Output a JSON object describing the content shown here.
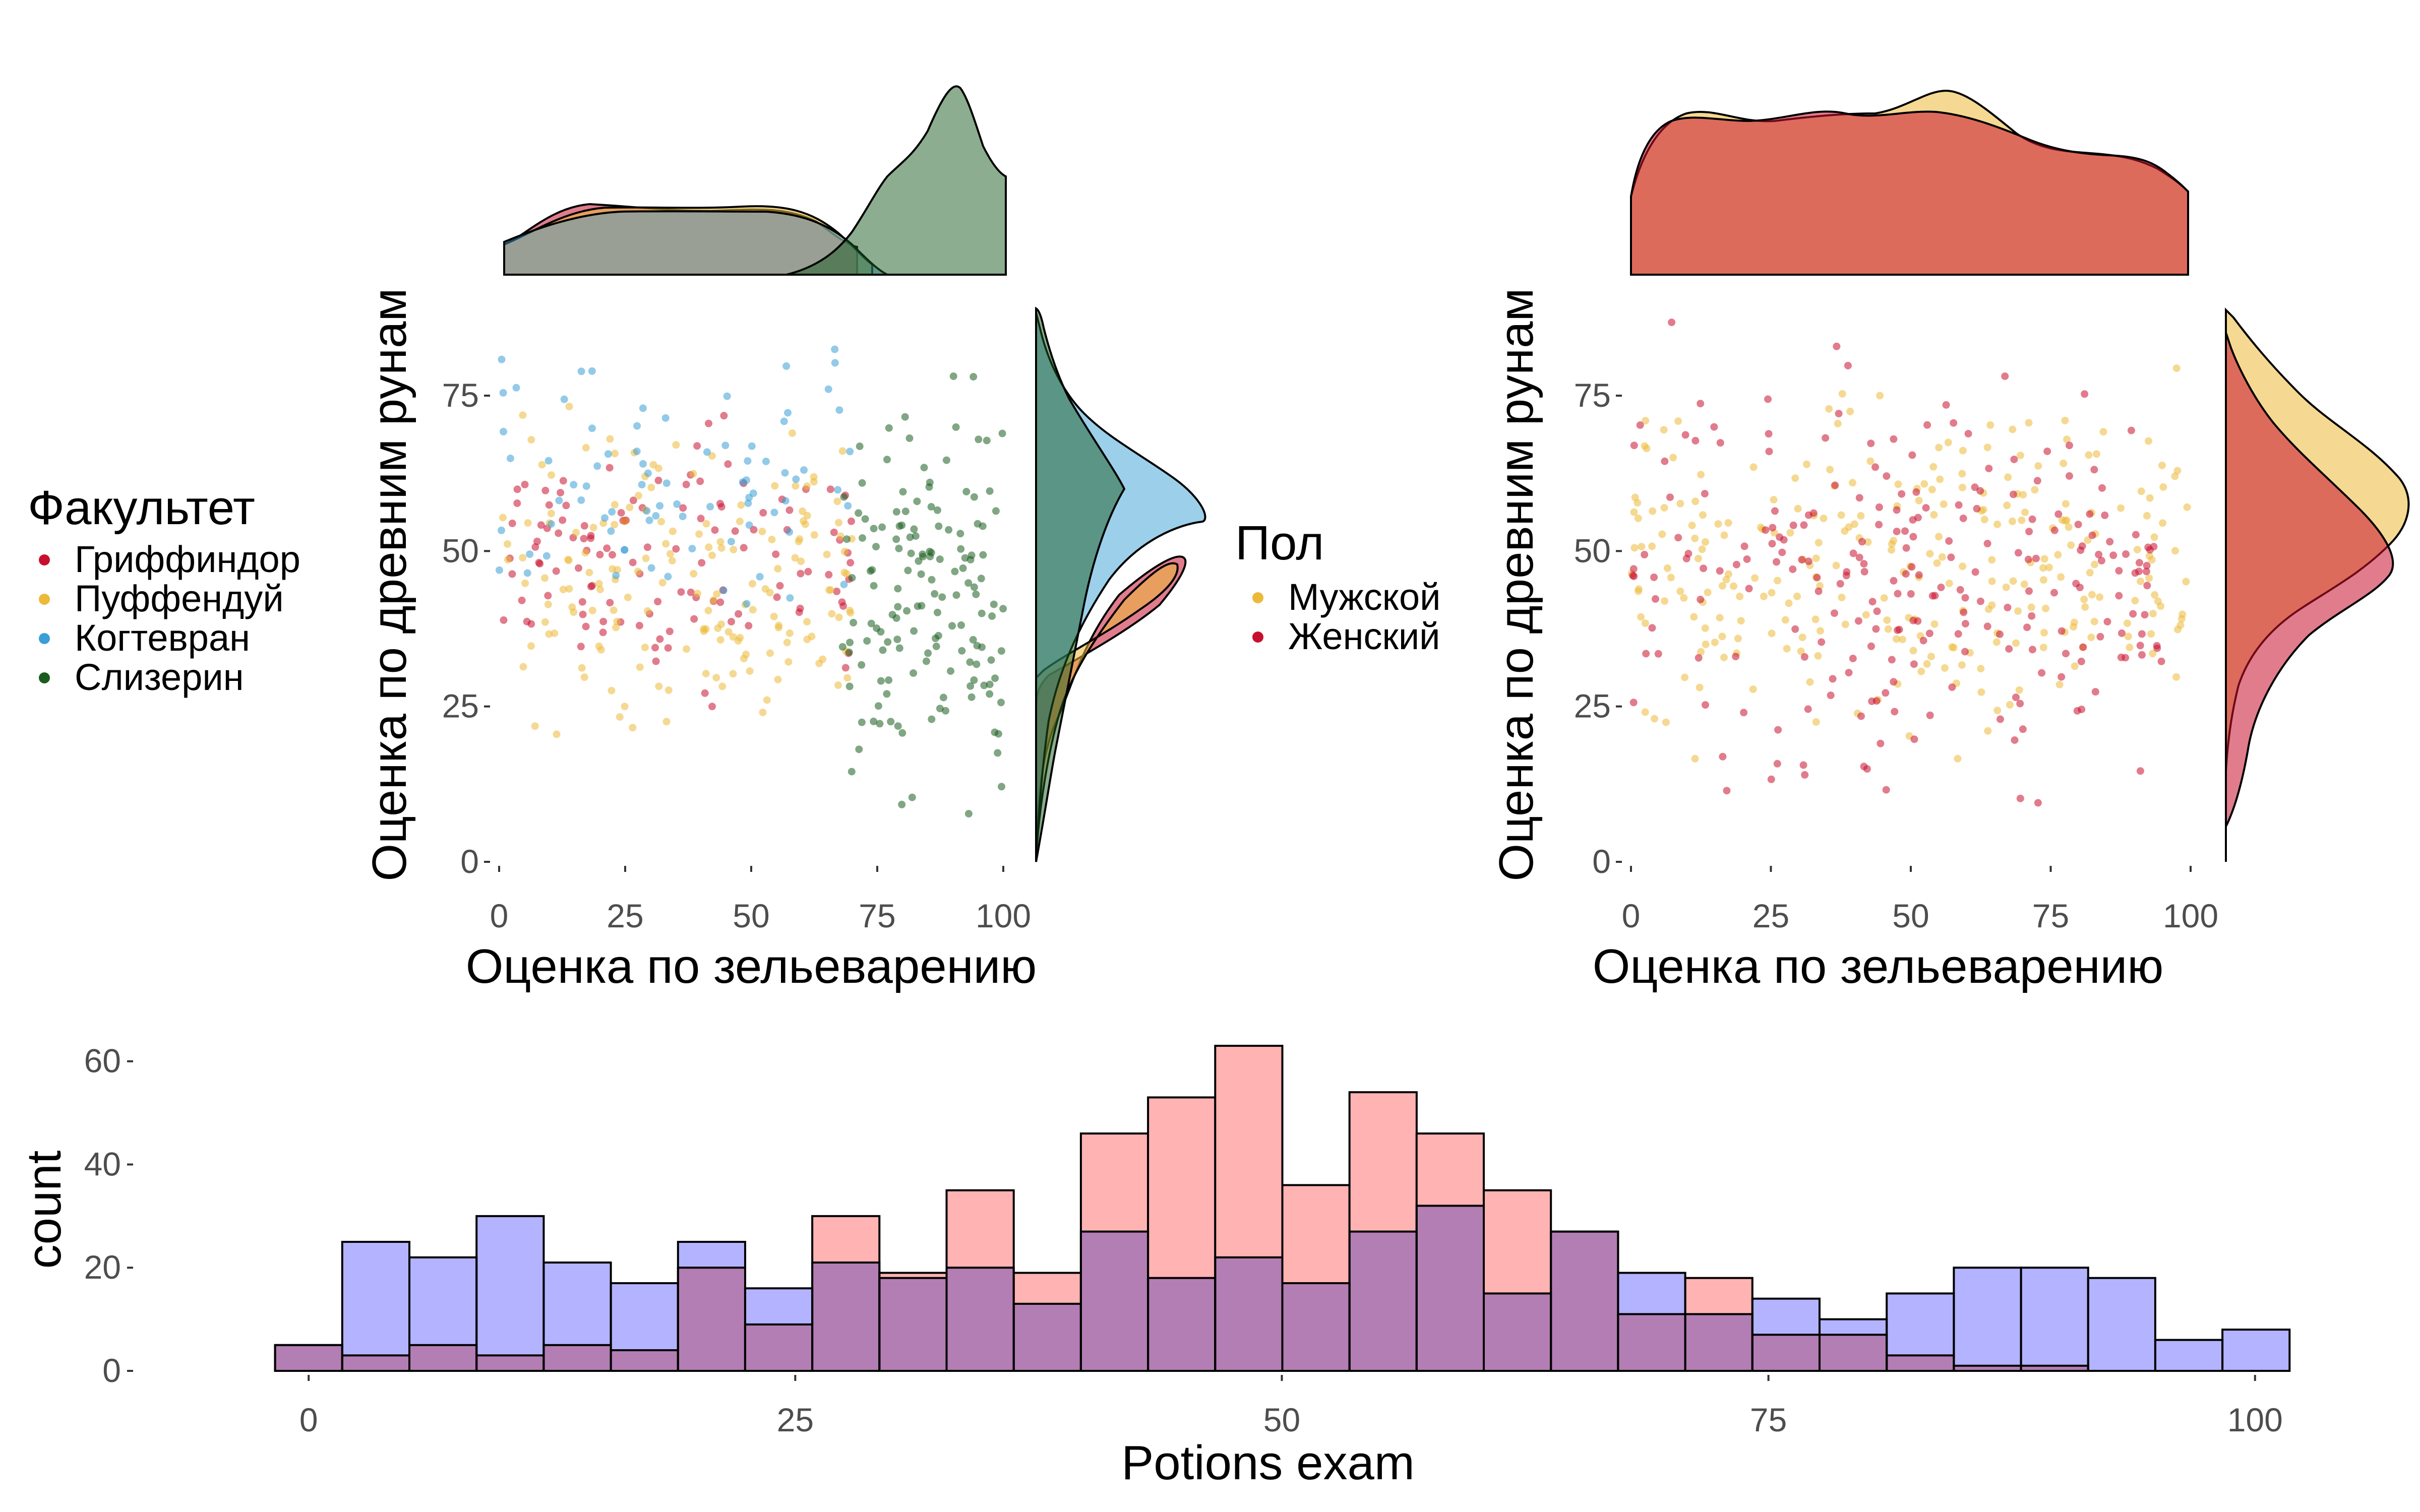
{
  "chart_data": [
    {
      "id": "scatter-by-house",
      "type": "scatter",
      "xlabel": "Оценка по зельеварению",
      "ylabel": "Оценка по древним рунам",
      "xlim": [
        0,
        100
      ],
      "ylim": [
        0,
        90
      ],
      "xticks": [
        "0",
        "25",
        "50",
        "75",
        "100"
      ],
      "yticks": [
        "0",
        "25",
        "50",
        "75"
      ],
      "legend": {
        "title": "Факультет",
        "position": "left",
        "entries": [
          {
            "label": "Гриффиндор",
            "color": "#c8102e"
          },
          {
            "label": "Пуффендуй",
            "color": "#ecb939"
          },
          {
            "label": "Когтевран",
            "color": "#3a9fd6"
          },
          {
            "label": "Слизерин",
            "color": "#1a5c1f"
          }
        ]
      },
      "series": [
        {
          "name": "Гриффиндор",
          "color": "#c8102e",
          "x_range": [
            0,
            70
          ],
          "y_range": [
            20,
            80
          ],
          "count": 120
        },
        {
          "name": "Пуффендуй",
          "color": "#ecb939",
          "x_range": [
            0,
            70
          ],
          "y_range": [
            12,
            80
          ],
          "count": 170
        },
        {
          "name": "Когтевран",
          "color": "#3a9fd6",
          "x_range": [
            0,
            70
          ],
          "y_range": [
            32,
            90
          ],
          "count": 80
        },
        {
          "name": "Слизерин",
          "color": "#1a5c1f",
          "x_range": [
            68,
            100
          ],
          "y_range": [
            0,
            88
          ],
          "count": 150
        }
      ],
      "marginal_x": {
        "type": "density",
        "note": "Слизерин peaks near x=88; other houses roughly flat across 0-65"
      },
      "marginal_y": {
        "type": "density",
        "note": "Гриффиндор/Пуффендуй peak near y=48; Когтевран near y=55; Слизерин broad"
      }
    },
    {
      "id": "scatter-by-gender",
      "type": "scatter",
      "xlabel": "Оценка по зельеварению",
      "ylabel": "Оценка по древним рунам",
      "xlim": [
        0,
        100
      ],
      "ylim": [
        0,
        90
      ],
      "xticks": [
        "0",
        "25",
        "50",
        "75",
        "100"
      ],
      "yticks": [
        "0",
        "25",
        "50",
        "75"
      ],
      "legend": {
        "title": "Пол",
        "position": "left",
        "entries": [
          {
            "label": "Мужской",
            "color": "#ecb939"
          },
          {
            "label": "Женский",
            "color": "#c8102e"
          }
        ]
      },
      "series": [
        {
          "name": "Мужской",
          "color": "#ecb939",
          "x_range": [
            0,
            100
          ],
          "y_range": [
            12,
            85
          ],
          "count": 280
        },
        {
          "name": "Женский",
          "color": "#c8102e",
          "x_range": [
            0,
            95
          ],
          "y_range": [
            0,
            90
          ],
          "count": 240
        }
      ],
      "marginal_x": {
        "type": "density",
        "fill": "#df6e4e"
      },
      "marginal_y": {
        "type": "density",
        "note": "Мужской peaks near y=55; Женский peaks near y=48"
      }
    },
    {
      "id": "histogram-potions",
      "type": "bar",
      "subtype": "histogram",
      "xlabel": "Potions exam",
      "ylabel": "count",
      "xlim": [
        -2,
        102
      ],
      "ylim": [
        0,
        63
      ],
      "xticks": [
        0,
        25,
        50,
        75,
        100
      ],
      "yticks": [
        0,
        20,
        40,
        60
      ],
      "bin_width": 3.45,
      "bin_start": -1.725,
      "series": [
        {
          "name": "pink",
          "color": "#ffb3b3",
          "values": [
            5,
            3,
            5,
            3,
            5,
            4,
            20,
            9,
            30,
            19,
            35,
            19,
            46,
            53,
            63,
            36,
            54,
            46,
            35,
            27,
            11,
            18,
            7,
            7,
            3,
            1,
            1,
            0,
            0,
            0,
            0
          ]
        },
        {
          "name": "blue",
          "color": "#b3b3ff",
          "values": [
            5,
            25,
            22,
            30,
            21,
            17,
            25,
            16,
            21,
            18,
            20,
            13,
            27,
            18,
            22,
            17,
            27,
            32,
            15,
            27,
            19,
            11,
            14,
            10,
            15,
            20,
            20,
            18,
            6,
            8,
            0
          ]
        }
      ]
    }
  ]
}
